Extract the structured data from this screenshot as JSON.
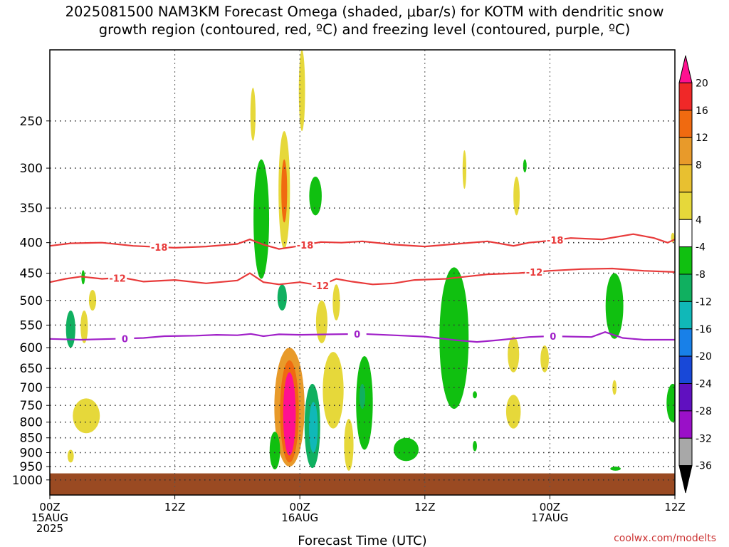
{
  "title_lines": [
    "2025081500 NAM3KM Forecast Omega (shaded, μbar/s) for KOTM with dendritic snow",
    "growth region (contoured, red, ºC) and freezing level (contoured, purple, ºC)"
  ],
  "credit": "coolwx.com/modelts",
  "chart_data": {
    "type": "heatmap",
    "title": "2025081500 NAM3KM Forecast Omega (shaded, μbar/s) for KOTM with dendritic snow growth region (contoured, red, ºC) and freezing level (contoured, purple, ºC)",
    "xlabel": "Forecast Time (UTC)",
    "ylabel": "",
    "x_range_hours": [
      0,
      60
    ],
    "x_ticks": [
      {
        "hour": 0,
        "line1": "00Z",
        "line2": "15AUG",
        "line3": "2025"
      },
      {
        "hour": 12,
        "line1": "12Z",
        "line2": "",
        "line3": ""
      },
      {
        "hour": 24,
        "line1": "00Z",
        "line2": "16AUG",
        "line3": ""
      },
      {
        "hour": 36,
        "line1": "12Z",
        "line2": "",
        "line3": ""
      },
      {
        "hour": 48,
        "line1": "00Z",
        "line2": "17AUG",
        "line3": ""
      },
      {
        "hour": 60,
        "line1": "12Z",
        "line2": "",
        "line3": ""
      }
    ],
    "y_range_hpa": [
      1060,
      190
    ],
    "y_scale": "log-pressure",
    "y_ticks": [
      250,
      300,
      350,
      400,
      450,
      500,
      550,
      600,
      650,
      700,
      750,
      800,
      850,
      900,
      950,
      1000
    ],
    "grid": "dotted",
    "surface_below_hpa": 975,
    "surface_color": "#9a4a22",
    "colorbar": {
      "labels": [
        "20",
        "16",
        "12",
        "8",
        "4",
        "-4",
        "-8",
        "-12",
        "-16",
        "-20",
        "-24",
        "-28",
        "-32",
        "-36"
      ],
      "colors": [
        "#ff1090",
        "#f02828",
        "#f06a10",
        "#e89a2a",
        "#e8c030",
        "#e6d83a",
        "#ffffff",
        "#10c010",
        "#10b060",
        "#10b8b8",
        "#1880e8",
        "#1848d8",
        "#6010c0",
        "#9a10c8",
        "#a8a8a8",
        "#000000"
      ]
    },
    "isotherms": [
      {
        "label": "-18",
        "color": "#e83a3a",
        "label_hours": [
          10.5,
          24.5,
          48.5
        ],
        "points": [
          [
            0,
            405
          ],
          [
            2,
            401
          ],
          [
            5,
            400
          ],
          [
            8,
            405
          ],
          [
            12,
            408
          ],
          [
            15,
            406
          ],
          [
            18,
            402
          ],
          [
            19.2,
            395
          ],
          [
            20.5,
            403
          ],
          [
            22,
            410
          ],
          [
            24,
            405
          ],
          [
            26,
            399
          ],
          [
            28,
            400
          ],
          [
            30,
            398
          ],
          [
            33,
            403
          ],
          [
            36,
            406
          ],
          [
            39,
            402
          ],
          [
            42,
            398
          ],
          [
            44.5,
            405
          ],
          [
            46,
            400
          ],
          [
            48,
            397
          ],
          [
            50,
            393
          ],
          [
            53,
            395
          ],
          [
            56,
            387
          ],
          [
            58,
            393
          ],
          [
            59.3,
            400
          ],
          [
            60,
            395
          ]
        ]
      },
      {
        "label": "-12",
        "color": "#e83a3a",
        "label_hours": [
          6.5,
          26,
          46.5
        ],
        "points": [
          [
            0,
            466
          ],
          [
            1.5,
            460
          ],
          [
            3,
            456
          ],
          [
            5,
            460
          ],
          [
            7,
            458
          ],
          [
            9,
            465
          ],
          [
            12,
            462
          ],
          [
            15,
            468
          ],
          [
            18,
            463
          ],
          [
            19.2,
            450
          ],
          [
            20.5,
            466
          ],
          [
            22,
            470
          ],
          [
            24,
            466
          ],
          [
            26,
            472
          ],
          [
            27.5,
            460
          ],
          [
            29,
            465
          ],
          [
            31,
            470
          ],
          [
            33,
            468
          ],
          [
            35,
            462
          ],
          [
            38,
            460
          ],
          [
            40,
            456
          ],
          [
            42,
            452
          ],
          [
            45,
            450
          ],
          [
            48,
            446
          ],
          [
            51,
            443
          ],
          [
            54,
            442
          ],
          [
            57,
            446
          ],
          [
            60,
            448
          ]
        ]
      },
      {
        "label": "0",
        "color": "#a020c8",
        "label_hours": [
          7.2,
          29.5,
          48.3
        ],
        "points": [
          [
            0,
            580
          ],
          [
            3,
            582
          ],
          [
            6,
            580
          ],
          [
            9,
            578
          ],
          [
            11,
            574
          ],
          [
            14,
            573
          ],
          [
            16,
            571
          ],
          [
            18,
            572
          ],
          [
            19.3,
            569
          ],
          [
            20.5,
            574
          ],
          [
            22,
            570
          ],
          [
            24,
            571
          ],
          [
            27,
            570
          ],
          [
            30,
            569
          ],
          [
            33,
            572
          ],
          [
            36,
            575
          ],
          [
            39,
            583
          ],
          [
            41,
            587
          ],
          [
            43,
            583
          ],
          [
            46,
            576
          ],
          [
            48,
            574
          ],
          [
            50,
            575
          ],
          [
            52,
            576
          ],
          [
            53.3,
            565
          ],
          [
            55,
            578
          ],
          [
            57,
            582
          ],
          [
            60,
            582
          ]
        ]
      }
    ],
    "omega_cells": [
      {
        "hour": 2.0,
        "p_top": 520,
        "p_bot": 600,
        "w": 0.45,
        "value": -10
      },
      {
        "hour": 3.2,
        "p_top": 445,
        "p_bot": 470,
        "w": 0.15,
        "value": -6
      },
      {
        "hour": 3.3,
        "p_top": 520,
        "p_bot": 590,
        "w": 0.35,
        "value": 6
      },
      {
        "hour": 4.1,
        "p_top": 480,
        "p_bot": 520,
        "w": 0.35,
        "value": 6
      },
      {
        "hour": 3.5,
        "p_top": 730,
        "p_bot": 835,
        "w": 1.3,
        "value": 5
      },
      {
        "hour": 2.0,
        "p_top": 890,
        "p_bot": 935,
        "w": 0.3,
        "value": 5
      },
      {
        "hour": 19.5,
        "p_top": 220,
        "p_bot": 270,
        "w": 0.25,
        "value": 5
      },
      {
        "hour": 20.3,
        "p_top": 290,
        "p_bot": 460,
        "w": 0.75,
        "value": -6
      },
      {
        "hour": 22.5,
        "p_top": 260,
        "p_bot": 410,
        "w": 0.55,
        "value": 7
      },
      {
        "hour": 22.5,
        "p_top": 290,
        "p_bot": 370,
        "w": 0.28,
        "value": 12
      },
      {
        "hour": 24.2,
        "p_top": 190,
        "p_bot": 260,
        "w": 0.3,
        "value": 5
      },
      {
        "hour": 25.5,
        "p_top": 310,
        "p_bot": 360,
        "w": 0.6,
        "value": -7
      },
      {
        "hour": 22.3,
        "p_top": 470,
        "p_bot": 520,
        "w": 0.45,
        "value": -8
      },
      {
        "hour": 26.1,
        "p_top": 500,
        "p_bot": 590,
        "w": 0.55,
        "value": 5
      },
      {
        "hour": 27.5,
        "p_top": 470,
        "p_bot": 540,
        "w": 0.35,
        "value": 5
      },
      {
        "hour": 23.0,
        "p_top": 600,
        "p_bot": 950,
        "w": 1.45,
        "value": 8
      },
      {
        "hour": 23.0,
        "p_top": 630,
        "p_bot": 935,
        "w": 0.9,
        "value": 14
      },
      {
        "hour": 23.0,
        "p_top": 660,
        "p_bot": 910,
        "w": 0.6,
        "value": 22
      },
      {
        "hour": 25.2,
        "p_top": 690,
        "p_bot": 955,
        "w": 0.75,
        "value": -8
      },
      {
        "hour": 25.3,
        "p_top": 740,
        "p_bot": 900,
        "w": 0.42,
        "value": -13
      },
      {
        "hour": 21.6,
        "p_top": 830,
        "p_bot": 960,
        "w": 0.5,
        "value": -7
      },
      {
        "hour": 27.2,
        "p_top": 610,
        "p_bot": 820,
        "w": 1.0,
        "value": 5
      },
      {
        "hour": 28.7,
        "p_top": 790,
        "p_bot": 965,
        "w": 0.45,
        "value": 6
      },
      {
        "hour": 30.2,
        "p_top": 620,
        "p_bot": 890,
        "w": 0.8,
        "value": -6
      },
      {
        "hour": 30.0,
        "p_top": 690,
        "p_bot": 760,
        "w": 0.28,
        "value": -10
      },
      {
        "hour": 34.2,
        "p_top": 850,
        "p_bot": 930,
        "w": 1.2,
        "value": -6
      },
      {
        "hour": 38.8,
        "p_top": 440,
        "p_bot": 760,
        "w": 1.4,
        "value": -6
      },
      {
        "hour": 39.8,
        "p_top": 280,
        "p_bot": 325,
        "w": 0.18,
        "value": 5
      },
      {
        "hour": 40.8,
        "p_top": 710,
        "p_bot": 730,
        "w": 0.2,
        "value": -6
      },
      {
        "hour": 40.8,
        "p_top": 860,
        "p_bot": 895,
        "w": 0.2,
        "value": -6
      },
      {
        "hour": 44.8,
        "p_top": 310,
        "p_bot": 360,
        "w": 0.3,
        "value": 5
      },
      {
        "hour": 44.5,
        "p_top": 575,
        "p_bot": 660,
        "w": 0.55,
        "value": 5
      },
      {
        "hour": 44.5,
        "p_top": 720,
        "p_bot": 820,
        "w": 0.7,
        "value": 5
      },
      {
        "hour": 45.6,
        "p_top": 290,
        "p_bot": 305,
        "w": 0.15,
        "value": -6
      },
      {
        "hour": 47.5,
        "p_top": 595,
        "p_bot": 660,
        "w": 0.4,
        "value": 5
      },
      {
        "hour": 54.2,
        "p_top": 450,
        "p_bot": 580,
        "w": 0.85,
        "value": -6
      },
      {
        "hour": 54.3,
        "p_top": 950,
        "p_bot": 965,
        "w": 0.5,
        "value": -6
      },
      {
        "hour": 54.2,
        "p_top": 680,
        "p_bot": 720,
        "w": 0.2,
        "value": 5
      },
      {
        "hour": 59.8,
        "p_top": 690,
        "p_bot": 800,
        "w": 0.6,
        "value": -6
      },
      {
        "hour": 59.8,
        "p_top": 385,
        "p_bot": 400,
        "w": 0.15,
        "value": 5
      }
    ]
  }
}
